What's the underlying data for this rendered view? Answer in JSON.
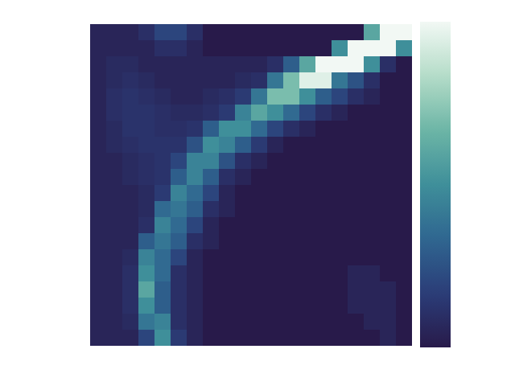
{
  "chart_data": {
    "type": "heatmap",
    "tick_labels": false,
    "z": [
      [
        0.05,
        0.05,
        0.05,
        0.1,
        0.2,
        0.2,
        0.1,
        0,
        0,
        0,
        0,
        0,
        0,
        0,
        0,
        0,
        0,
        0.6,
        1.0,
        1.0
      ],
      [
        0.05,
        0.05,
        0.05,
        0.05,
        0.1,
        0.1,
        0.05,
        0,
        0,
        0,
        0,
        0,
        0,
        0,
        0,
        0.5,
        1.0,
        1.0,
        1.0,
        0.5
      ],
      [
        0.05,
        0.08,
        0.08,
        0.05,
        0.05,
        0.05,
        0.05,
        0.05,
        0.05,
        0.05,
        0.05,
        0.1,
        0.3,
        0.6,
        1.0,
        1.0,
        1.0,
        0.5,
        0.1,
        0
      ],
      [
        0.05,
        0.08,
        0.1,
        0.08,
        0.05,
        0.05,
        0.05,
        0.05,
        0.05,
        0.08,
        0.1,
        0.4,
        0.7,
        0.95,
        0.95,
        0.4,
        0.25,
        0.1,
        0,
        0
      ],
      [
        0.05,
        0.1,
        0.12,
        0.1,
        0.08,
        0.05,
        0.05,
        0.08,
        0.1,
        0.15,
        0.4,
        0.7,
        0.7,
        0.5,
        0.3,
        0.2,
        0.1,
        0.05,
        0,
        0
      ],
      [
        0.05,
        0.1,
        0.12,
        0.12,
        0.1,
        0.08,
        0.08,
        0.1,
        0.15,
        0.45,
        0.6,
        0.5,
        0.35,
        0.2,
        0.1,
        0.05,
        0,
        0,
        0,
        0
      ],
      [
        0.05,
        0.08,
        0.12,
        0.12,
        0.1,
        0.1,
        0.12,
        0.3,
        0.5,
        0.5,
        0.35,
        0.2,
        0.1,
        0.05,
        0,
        0,
        0,
        0,
        0,
        0
      ],
      [
        0.05,
        0.08,
        0.1,
        0.12,
        0.12,
        0.12,
        0.25,
        0.5,
        0.45,
        0.3,
        0.15,
        0.05,
        0,
        0,
        0,
        0,
        0,
        0,
        0,
        0
      ],
      [
        0.05,
        0.05,
        0.08,
        0.1,
        0.12,
        0.2,
        0.45,
        0.45,
        0.25,
        0.1,
        0.05,
        0,
        0,
        0,
        0,
        0,
        0,
        0,
        0,
        0
      ],
      [
        0.05,
        0.05,
        0.08,
        0.1,
        0.12,
        0.3,
        0.45,
        0.3,
        0.1,
        0.05,
        0,
        0,
        0,
        0,
        0,
        0,
        0,
        0,
        0,
        0
      ],
      [
        0.05,
        0.05,
        0.05,
        0.08,
        0.15,
        0.45,
        0.35,
        0.2,
        0.05,
        0,
        0,
        0,
        0,
        0,
        0,
        0,
        0,
        0,
        0,
        0
      ],
      [
        0.05,
        0.05,
        0.05,
        0.08,
        0.35,
        0.4,
        0.3,
        0.1,
        0.05,
        0,
        0,
        0,
        0,
        0,
        0,
        0,
        0,
        0,
        0,
        0
      ],
      [
        0.05,
        0.05,
        0.05,
        0.1,
        0.45,
        0.35,
        0.2,
        0.05,
        0,
        0,
        0,
        0,
        0,
        0,
        0,
        0,
        0,
        0,
        0,
        0
      ],
      [
        0.05,
        0.05,
        0.05,
        0.3,
        0.4,
        0.3,
        0.1,
        0.05,
        0,
        0,
        0,
        0,
        0,
        0,
        0,
        0,
        0,
        0,
        0,
        0
      ],
      [
        0.05,
        0.05,
        0.08,
        0.45,
        0.35,
        0.2,
        0.05,
        0,
        0,
        0,
        0,
        0,
        0,
        0,
        0,
        0,
        0,
        0,
        0,
        0
      ],
      [
        0.05,
        0.05,
        0.1,
        0.5,
        0.35,
        0.1,
        0.05,
        0,
        0,
        0,
        0,
        0,
        0,
        0,
        0,
        0,
        0.05,
        0.05,
        0,
        0
      ],
      [
        0.05,
        0.05,
        0.1,
        0.6,
        0.3,
        0.1,
        0.05,
        0,
        0,
        0,
        0,
        0,
        0,
        0,
        0,
        0,
        0.05,
        0.05,
        0.05,
        0
      ],
      [
        0.05,
        0.05,
        0.1,
        0.5,
        0.3,
        0.1,
        0.05,
        0,
        0,
        0,
        0,
        0,
        0,
        0,
        0,
        0,
        0.05,
        0.05,
        0.05,
        0
      ],
      [
        0.05,
        0.05,
        0.08,
        0.4,
        0.45,
        0.1,
        0.05,
        0,
        0,
        0,
        0,
        0,
        0,
        0,
        0,
        0,
        0,
        0.05,
        0.05,
        0
      ],
      [
        0.05,
        0.05,
        0.05,
        0.2,
        0.5,
        0.15,
        0.05,
        0,
        0,
        0,
        0,
        0,
        0,
        0,
        0,
        0,
        0,
        0,
        0.05,
        0
      ]
    ],
    "colorbar": {
      "range": [
        0,
        1
      ],
      "colors": [
        "#281a4a",
        "#2b3d78",
        "#2f6690",
        "#3f8f9a",
        "#6cb5a6",
        "#b4dcc8",
        "#f2f8f4"
      ]
    }
  }
}
